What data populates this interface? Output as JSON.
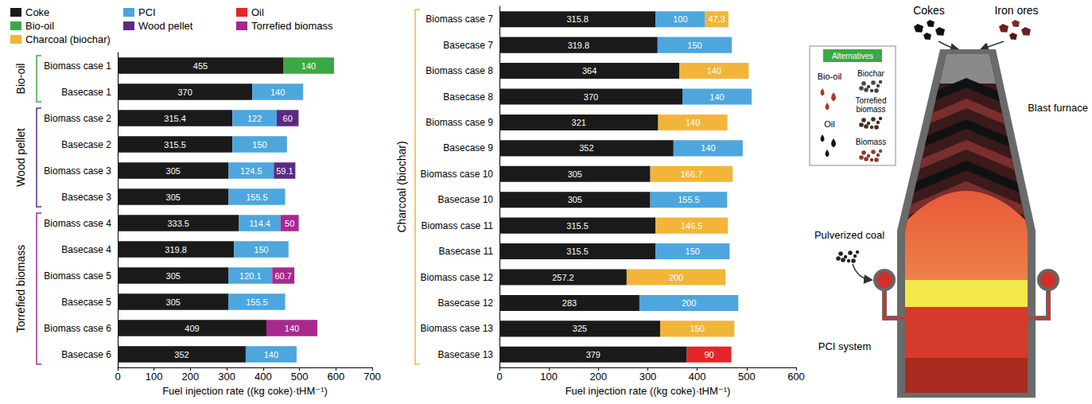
{
  "chart_data": [
    {
      "type": "bar",
      "orientation": "horizontal",
      "stacked": true,
      "data_labels": true,
      "grid": false,
      "legend": "upper left",
      "xlabel": "Fuel injection rate ((kg coke)·tHM⁻¹)",
      "xlim": [
        0,
        700
      ],
      "xticks": [
        0,
        100,
        200,
        300,
        400,
        500,
        600,
        700
      ],
      "categories": [
        "Biomass case 1",
        "Basecase 1",
        "Biomass case 2",
        "Basecase 2",
        "Biomass case 3",
        "Basecase 3",
        "Biomass case 4",
        "Basecase 4",
        "Biomass case 5",
        "Basecase 5",
        "Biomass case 6",
        "Basecase 6"
      ],
      "groups": [
        {
          "label": "Bio-oil",
          "categories": [
            "Biomass case 1",
            "Basecase 1"
          ]
        },
        {
          "label": "Wood pellet",
          "categories": [
            "Biomass case 2",
            "Basecase 2",
            "Biomass case 3",
            "Basecase 3"
          ]
        },
        {
          "label": "Torrefied biomass",
          "categories": [
            "Biomass case 4",
            "Basecase 4",
            "Biomass case 5",
            "Basecase 5",
            "Biomass case 6",
            "Basecase 6"
          ]
        }
      ],
      "series": [
        {
          "name": "Coke",
          "color": "#1a1a1a",
          "values": [
            455,
            370,
            315.4,
            315.5,
            305,
            305,
            333.5,
            319.8,
            305,
            305,
            409,
            352
          ]
        },
        {
          "name": "PCI",
          "color": "#4da6dd",
          "values": [
            null,
            140,
            122,
            150,
            124.5,
            155.5,
            114.4,
            150,
            120.1,
            155.5,
            null,
            140
          ]
        },
        {
          "name": "Oil",
          "color": "#e3262a",
          "values": [
            null,
            null,
            null,
            null,
            null,
            null,
            null,
            null,
            null,
            null,
            null,
            null
          ]
        },
        {
          "name": "Bio-oil",
          "color": "#3aa845",
          "values": [
            140,
            null,
            null,
            null,
            null,
            null,
            null,
            null,
            null,
            null,
            null,
            null
          ]
        },
        {
          "name": "Wood pellet",
          "color": "#5a2a82",
          "values": [
            null,
            null,
            60,
            null,
            59.1,
            null,
            null,
            null,
            null,
            null,
            null,
            null
          ]
        },
        {
          "name": "Torrefied biomass",
          "color": "#a8288f",
          "values": [
            null,
            null,
            null,
            null,
            null,
            null,
            50,
            null,
            60.7,
            null,
            140,
            null
          ]
        },
        {
          "name": "Charcoal (biochar)",
          "color": "#f2b53a",
          "values": [
            null,
            null,
            null,
            null,
            null,
            null,
            null,
            null,
            null,
            null,
            null,
            null
          ]
        }
      ]
    },
    {
      "type": "bar",
      "orientation": "horizontal",
      "stacked": true,
      "data_labels": true,
      "grid": false,
      "xlabel": "Fuel injection rate ((kg coke)·tHM⁻¹)",
      "xlim": [
        0,
        600
      ],
      "xticks": [
        0,
        100,
        200,
        300,
        400,
        500,
        600
      ],
      "categories": [
        "Biomass case 7",
        "Basecase 7",
        "Biomass case 8",
        "Basecase 8",
        "Biomass case 9",
        "Basecase 9",
        "Biomass case 10",
        "Basecase 10",
        "Biomass case 11",
        "Basecase 11",
        "Biomass case 12",
        "Basecase 12",
        "Biomass case 13",
        "Basecase 13"
      ],
      "groups": [
        {
          "label": "Charcoal (biochar)",
          "categories": [
            "Biomass case 7",
            "Basecase 7",
            "Biomass case 8",
            "Basecase 8",
            "Biomass case 9",
            "Basecase 9",
            "Biomass case 10",
            "Basecase 10",
            "Biomass case 11",
            "Basecase 11",
            "Biomass case 12",
            "Basecase 12",
            "Biomass case 13",
            "Basecase 13"
          ]
        }
      ],
      "series": [
        {
          "name": "Coke",
          "color": "#1a1a1a",
          "values": [
            315.8,
            319.8,
            364,
            370,
            321,
            352,
            305,
            305,
            315.5,
            315.5,
            257.2,
            283,
            325,
            379
          ]
        },
        {
          "name": "PCI",
          "color": "#4da6dd",
          "values": [
            100,
            150,
            null,
            140,
            null,
            140,
            null,
            155.5,
            null,
            150,
            null,
            200,
            null,
            null
          ]
        },
        {
          "name": "Oil",
          "color": "#e3262a",
          "values": [
            null,
            null,
            null,
            null,
            null,
            null,
            null,
            null,
            null,
            null,
            null,
            null,
            null,
            90
          ]
        },
        {
          "name": "Charcoal (biochar)",
          "color": "#f2b53a",
          "values": [
            47.3,
            null,
            140,
            null,
            140,
            null,
            166.7,
            null,
            146.5,
            null,
            200,
            null,
            150,
            null
          ]
        }
      ]
    }
  ],
  "diagram": {
    "top_inputs": [
      "Cokes",
      "Iron ores"
    ],
    "furnace": "Blast furnace",
    "alternatives": {
      "title": "Alternatives",
      "items": [
        "Bio-oil",
        "Oil",
        "Biochar",
        "Torrefied biomass",
        "Biomass"
      ]
    },
    "pulverized_coal": "Pulverized coal",
    "pci_system": "PCI system"
  }
}
